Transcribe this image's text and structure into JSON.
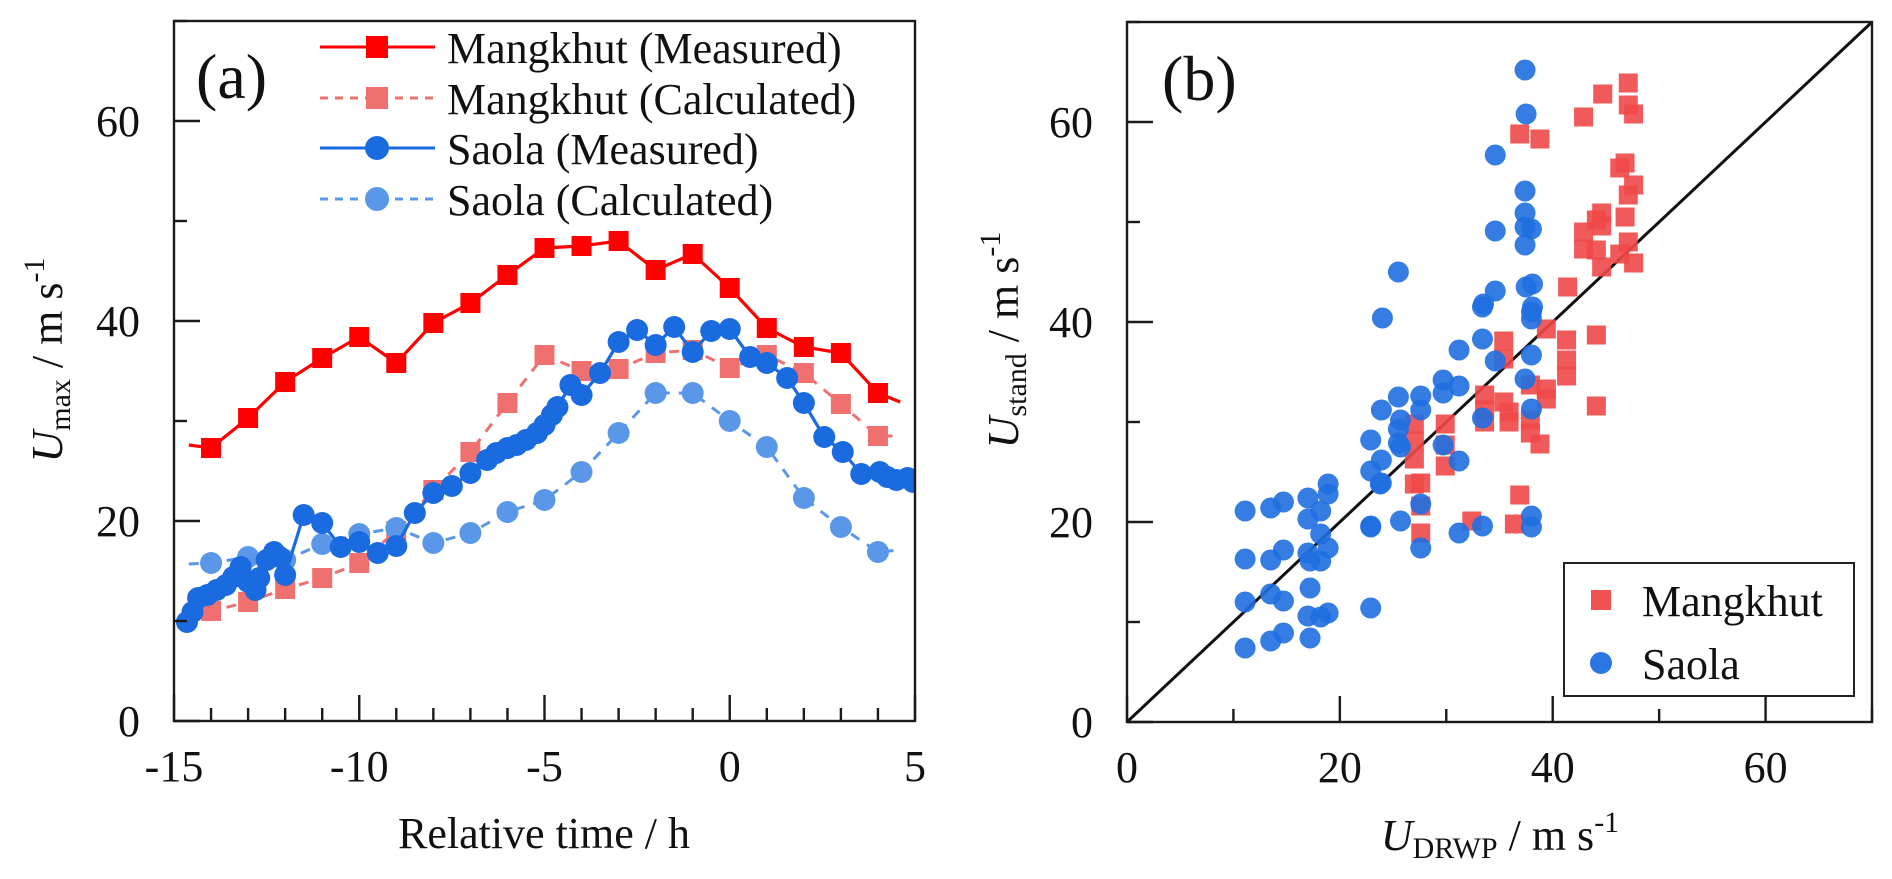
{
  "chart_data": [
    {
      "type": "line",
      "panel_label": "(a)",
      "xlabel": "Relative time / h",
      "ylabel": {
        "main": "U",
        "sub": "max",
        "unit": " / m s",
        "sup": "-1"
      },
      "xlim": [
        -15,
        5
      ],
      "ylim": [
        0,
        70
      ],
      "xticks": [
        -15,
        -10,
        -5,
        0,
        5
      ],
      "xtick_labels": [
        "-15",
        "-10",
        "-5",
        "0",
        "5"
      ],
      "yticks": [
        0,
        20,
        40,
        60
      ],
      "ytick_labels": [
        "0",
        "20",
        "40",
        "60"
      ],
      "grid": false,
      "legend_position": "top-right",
      "series": [
        {
          "name": "Mangkhut (Measured)",
          "color": "#ff0000",
          "marker": "square",
          "line": "solid",
          "x": [
            -14.6,
            -14,
            -13,
            -12,
            -11,
            -10,
            -9,
            -8,
            -7,
            -6,
            -5,
            -4,
            -3,
            -2,
            -1,
            0,
            1,
            2,
            3,
            4,
            4.6
          ],
          "y": [
            27.6,
            27.3,
            30.3,
            33.9,
            36.3,
            38.4,
            35.8,
            39.8,
            41.8,
            44.6,
            47.3,
            47.5,
            48.0,
            45.1,
            46.7,
            43.3,
            39.3,
            37.4,
            36.8,
            32.8,
            31.9
          ],
          "marker_from": 1,
          "marker_to": 19
        },
        {
          "name": "Mangkhut (Calculated)",
          "color": "#f07070",
          "marker": "square",
          "line": "dashed",
          "x": [
            -14.6,
            -14,
            -13,
            -12,
            -11,
            -10,
            -9,
            -8,
            -7,
            -6,
            -5,
            -4,
            -3,
            -2,
            -1,
            0,
            1,
            2,
            3,
            4,
            4.6
          ],
          "y": [
            11.0,
            11.0,
            11.9,
            13.2,
            14.3,
            15.8,
            19.0,
            23.1,
            26.9,
            31.8,
            36.6,
            35.0,
            35.2,
            36.8,
            37.1,
            35.3,
            36.6,
            34.8,
            31.7,
            28.5,
            28.5
          ],
          "marker_from": 1,
          "marker_to": 19
        },
        {
          "name": "Saola (Measured)",
          "color": "#1a6ae0",
          "marker": "circle",
          "line": "solid",
          "x": [
            -14.65,
            -14.5,
            -14.35,
            -14.1,
            -13.85,
            -13.6,
            -13.4,
            -13.2,
            -13.0,
            -12.8,
            -12.7,
            -12.5,
            -12.3,
            -12.15,
            -12.0,
            -11.5,
            -11.0,
            -10.5,
            -10.0,
            -9.5,
            -9.0,
            -8.5,
            -8.0,
            -7.5,
            -7.0,
            -6.55,
            -6.3,
            -6.0,
            -5.75,
            -5.5,
            -5.2,
            -5.0,
            -4.8,
            -4.65,
            -4.3,
            -4.0,
            -3.5,
            -3.0,
            -2.5,
            -2.0,
            -1.5,
            -1.0,
            -0.5,
            0.0,
            0.55,
            1.0,
            1.55,
            2.0,
            2.55,
            3.05,
            3.55,
            4.05,
            4.25,
            4.5,
            4.8,
            4.95
          ],
          "y": [
            9.9,
            10.9,
            12.3,
            12.6,
            13.1,
            13.6,
            14.4,
            15.4,
            13.9,
            13.1,
            14.3,
            16.1,
            16.9,
            16.4,
            14.6,
            20.6,
            19.8,
            17.4,
            17.9,
            16.8,
            17.5,
            20.8,
            22.8,
            23.5,
            24.8,
            26.1,
            26.8,
            27.3,
            27.6,
            28.1,
            28.8,
            29.6,
            30.6,
            31.4,
            33.6,
            32.6,
            34.8,
            37.9,
            39.1,
            37.6,
            39.4,
            36.9,
            39.0,
            39.2,
            36.4,
            35.8,
            34.3,
            31.8,
            28.4,
            26.9,
            24.7,
            24.9,
            24.4,
            24.1,
            24.3,
            23.9
          ],
          "marker_from": 0,
          "marker_to": 55
        },
        {
          "name": "Saola (Calculated)",
          "color": "#5b97e8",
          "marker": "circle",
          "line": "dashed",
          "x": [
            -14.6,
            -14,
            -13,
            -12,
            -11,
            -10,
            -9,
            -8,
            -7,
            -6,
            -5,
            -4,
            -3,
            -2,
            -1,
            0,
            1,
            2,
            3,
            4,
            4.6
          ],
          "y": [
            15.7,
            15.8,
            16.4,
            16.1,
            17.7,
            18.7,
            19.3,
            17.8,
            18.8,
            20.9,
            22.1,
            24.9,
            28.8,
            32.8,
            32.8,
            30.0,
            27.4,
            22.3,
            19.4,
            16.9,
            17.1
          ],
          "marker_from": 1,
          "marker_to": 19
        }
      ]
    },
    {
      "type": "scatter",
      "panel_label": "(b)",
      "xlabel": {
        "main": "U",
        "sub": "DRWP",
        "unit": " / m s",
        "sup": "-1"
      },
      "ylabel": {
        "main": "U",
        "sub": "stand",
        "unit": " / m s",
        "sup": "-1"
      },
      "xlim": [
        0,
        70
      ],
      "ylim": [
        0,
        70
      ],
      "xticks": [
        0,
        20,
        40,
        60
      ],
      "xtick_labels": [
        "0",
        "20",
        "40",
        "60"
      ],
      "yticks": [
        0,
        20,
        40,
        60
      ],
      "ytick_labels": [
        "0",
        "20",
        "40",
        "60"
      ],
      "reference_line": "1:1",
      "grid": false,
      "legend_position": "bottom-right",
      "series": [
        {
          "name": "Mangkhut",
          "color": "#f04848",
          "marker": "square",
          "points": [
            [
              39.4,
              39.3
            ],
            [
              41.3,
              38.2
            ],
            [
              44.1,
              38.7
            ],
            [
              35.4,
              38.1
            ],
            [
              35.4,
              36.3
            ],
            [
              41.3,
              36.2
            ],
            [
              41.3,
              34.6
            ],
            [
              37.9,
              33.7
            ],
            [
              39.4,
              33.3
            ],
            [
              39.4,
              32.3
            ],
            [
              44.1,
              31.6
            ],
            [
              33.6,
              32.7
            ],
            [
              33.6,
              31.2
            ],
            [
              33.6,
              30.0
            ],
            [
              35.4,
              32.0
            ],
            [
              35.9,
              31.0
            ],
            [
              35.9,
              30.0
            ],
            [
              37.9,
              30.2
            ],
            [
              37.9,
              28.9
            ],
            [
              38.8,
              27.8
            ],
            [
              29.9,
              29.8
            ],
            [
              29.9,
              27.7
            ],
            [
              29.9,
              25.6
            ],
            [
              27.0,
              29.8
            ],
            [
              27.0,
              28.1
            ],
            [
              27.0,
              26.3
            ],
            [
              27.0,
              23.8
            ],
            [
              27.6,
              23.9
            ],
            [
              27.6,
              21.6
            ],
            [
              27.6,
              18.9
            ],
            [
              36.9,
              22.7
            ],
            [
              32.4,
              20.1
            ],
            [
              36.4,
              19.8
            ],
            [
              47.1,
              63.9
            ],
            [
              44.7,
              62.8
            ],
            [
              47.1,
              61.7
            ],
            [
              47.6,
              60.8
            ],
            [
              42.9,
              60.5
            ],
            [
              36.9,
              58.8
            ],
            [
              38.8,
              58.3
            ],
            [
              46.8,
              55.9
            ],
            [
              46.3,
              55.4
            ],
            [
              47.6,
              53.7
            ],
            [
              47.1,
              52.7
            ],
            [
              44.6,
              50.9
            ],
            [
              46.8,
              50.5
            ],
            [
              44.1,
              50.2
            ],
            [
              42.9,
              49.0
            ],
            [
              44.6,
              49.6
            ],
            [
              42.9,
              47.3
            ],
            [
              44.1,
              47.2
            ],
            [
              47.1,
              48.0
            ],
            [
              46.3,
              46.8
            ],
            [
              47.6,
              45.9
            ],
            [
              44.6,
              45.5
            ],
            [
              41.4,
              43.5
            ]
          ]
        },
        {
          "name": "Saola",
          "color": "#1f6fe0",
          "marker": "circle",
          "points": [
            [
              11.1,
              21.1
            ],
            [
              13.5,
              21.4
            ],
            [
              14.7,
              22.0
            ],
            [
              17.0,
              22.4
            ],
            [
              18.9,
              22.8
            ],
            [
              18.9,
              23.8
            ],
            [
              18.2,
              21.1
            ],
            [
              17.0,
              20.3
            ],
            [
              18.2,
              18.8
            ],
            [
              18.9,
              17.4
            ],
            [
              11.1,
              16.3
            ],
            [
              13.5,
              16.2
            ],
            [
              14.7,
              17.2
            ],
            [
              17.0,
              16.9
            ],
            [
              17.2,
              16.1
            ],
            [
              18.2,
              16.1
            ],
            [
              17.2,
              13.4
            ],
            [
              11.1,
              12.0
            ],
            [
              13.5,
              12.8
            ],
            [
              14.7,
              12.1
            ],
            [
              17.0,
              10.6
            ],
            [
              18.2,
              10.5
            ],
            [
              18.9,
              10.9
            ],
            [
              11.1,
              7.4
            ],
            [
              13.5,
              8.1
            ],
            [
              14.7,
              8.9
            ],
            [
              17.2,
              8.4
            ],
            [
              22.9,
              19.5
            ],
            [
              22.9,
              11.4
            ],
            [
              23.8,
              23.8
            ],
            [
              24.0,
              40.4
            ],
            [
              33.4,
              41.5
            ],
            [
              38.0,
              41.0
            ],
            [
              38.0,
              40.3
            ],
            [
              33.4,
              38.3
            ],
            [
              31.2,
              37.2
            ],
            [
              34.6,
              36.1
            ],
            [
              38.0,
              36.7
            ],
            [
              29.7,
              34.2
            ],
            [
              31.2,
              33.6
            ],
            [
              29.7,
              32.9
            ],
            [
              37.4,
              34.3
            ],
            [
              25.5,
              32.5
            ],
            [
              27.6,
              32.6
            ],
            [
              27.6,
              31.2
            ],
            [
              23.9,
              31.2
            ],
            [
              38.0,
              31.3
            ],
            [
              33.4,
              30.4
            ],
            [
              25.7,
              30.2
            ],
            [
              25.5,
              29.3
            ],
            [
              22.9,
              28.2
            ],
            [
              25.5,
              27.9
            ],
            [
              25.7,
              27.5
            ],
            [
              29.7,
              27.7
            ],
            [
              23.9,
              26.2
            ],
            [
              31.2,
              26.1
            ],
            [
              22.9,
              25.1
            ],
            [
              23.9,
              23.9
            ],
            [
              27.6,
              21.8
            ],
            [
              22.9,
              19.6
            ],
            [
              25.7,
              20.1
            ],
            [
              31.2,
              18.9
            ],
            [
              33.4,
              19.6
            ],
            [
              38.0,
              20.6
            ],
            [
              38.0,
              19.5
            ],
            [
              27.6,
              17.4
            ],
            [
              37.4,
              65.2
            ],
            [
              37.5,
              60.8
            ],
            [
              34.6,
              56.7
            ],
            [
              37.4,
              53.1
            ],
            [
              37.4,
              50.9
            ],
            [
              34.6,
              49.1
            ],
            [
              37.4,
              49.5
            ],
            [
              38.0,
              49.3
            ],
            [
              37.4,
              47.7
            ],
            [
              34.6,
              43.1
            ],
            [
              37.5,
              43.5
            ],
            [
              38.1,
              43.8
            ],
            [
              33.5,
              41.8
            ],
            [
              38.1,
              41.5
            ],
            [
              25.5,
              45.0
            ]
          ]
        }
      ]
    }
  ]
}
